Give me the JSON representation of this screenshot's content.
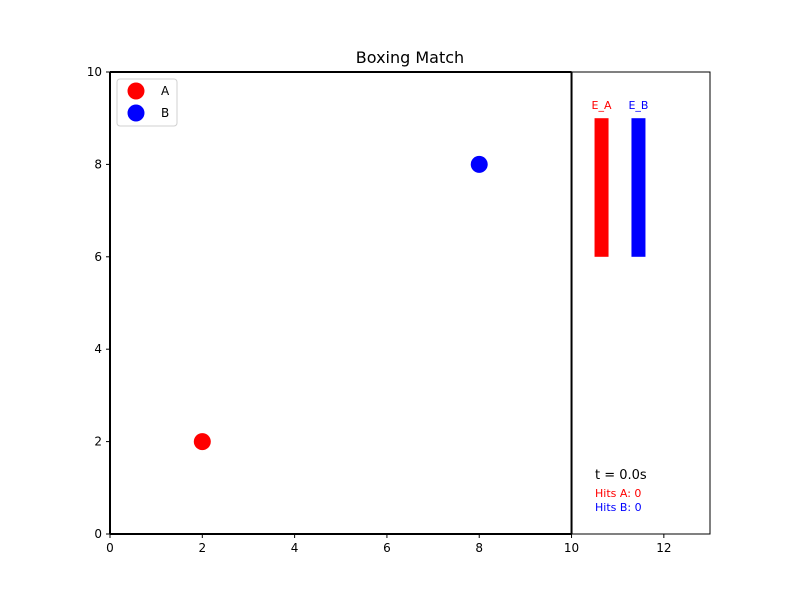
{
  "chart_data": {
    "type": "scatter",
    "title": "Boxing Match",
    "xlabel": "",
    "ylabel": "",
    "xlim": [
      0,
      13
    ],
    "ylim": [
      0,
      10
    ],
    "x_ticks": [
      0,
      2,
      4,
      6,
      8,
      10,
      12
    ],
    "y_ticks": [
      0,
      2,
      4,
      6,
      8,
      10
    ],
    "grid": false,
    "legend_position": "top-left",
    "ring_boundary_x": 10,
    "series": [
      {
        "name": "A",
        "color": "#ff0000",
        "points": [
          {
            "x": 2,
            "y": 2
          }
        ]
      },
      {
        "name": "B",
        "color": "#0000ff",
        "points": [
          {
            "x": 8,
            "y": 8
          }
        ]
      }
    ],
    "energy_bars": [
      {
        "label": "E_A",
        "color": "#ff0000",
        "x_center": 10.65,
        "bottom": 6,
        "top": 9
      },
      {
        "label": "E_B",
        "color": "#0000ff",
        "x_center": 11.45,
        "bottom": 6,
        "top": 9
      }
    ],
    "annotations": {
      "time": "t = 0.0s",
      "hits_a": "Hits A: 0",
      "hits_b": "Hits B: 0"
    }
  }
}
